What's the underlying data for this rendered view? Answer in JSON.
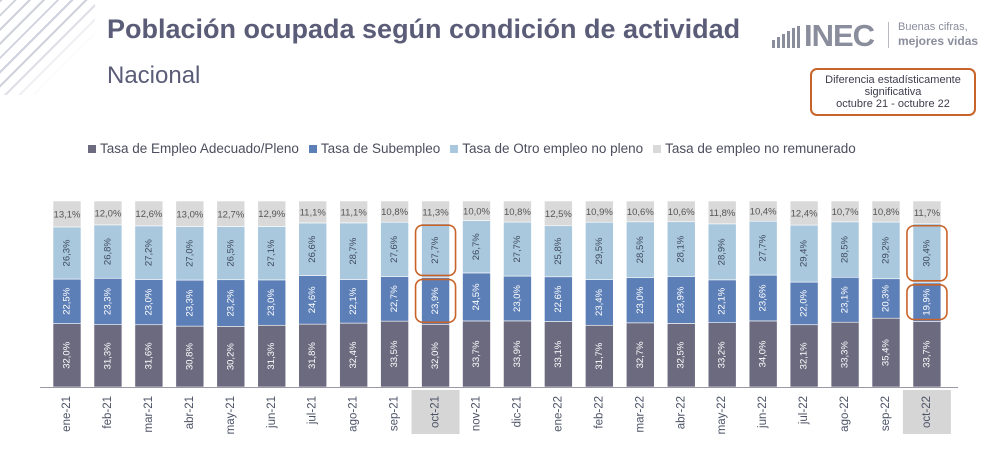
{
  "header": {
    "title": "Población ocupada según condición de actividad",
    "subtitle": "Nacional",
    "logo_text": "INEC",
    "logo_tagline_1": "Buenas cifras,",
    "logo_tagline_2": "mejores vidas"
  },
  "note": {
    "line1": "Diferencia estadísticamente",
    "line2": "significativa",
    "line3": "octubre 21 - octubre 22"
  },
  "colors": {
    "adecuado": "#6b6a7f",
    "subempleo": "#5d7fb7",
    "otro": "#a9c8de",
    "no_remunerado": "#d9d9d9",
    "highlight_border": "#c8642a",
    "highlight_label_bg": "#d6d6d6"
  },
  "chart_data": {
    "type": "bar",
    "stacked": true,
    "percent_stacked": true,
    "categories": [
      "ene-21",
      "feb-21",
      "mar-21",
      "abr-21",
      "may-21",
      "jun-21",
      "jul-21",
      "ago-21",
      "sep-21",
      "oct-21",
      "nov-21",
      "dic-21",
      "ene-22",
      "feb-22",
      "mar-22",
      "abr-22",
      "may-22",
      "jun-22",
      "jul-22",
      "ago-22",
      "sep-22",
      "oct-22"
    ],
    "series": [
      {
        "name": "Tasa de Empleo Adecuado/Pleno",
        "values": [
          32.0,
          31.3,
          31.6,
          30.8,
          30.2,
          31.3,
          31.8,
          32.4,
          33.5,
          32.0,
          33.7,
          33.9,
          33.1,
          31.7,
          32.7,
          32.5,
          33.2,
          34.0,
          32.1,
          33.3,
          35.4,
          33.7
        ],
        "labels": [
          "32,0%",
          "31,3%",
          "31,6%",
          "30,8%",
          "30,2%",
          "31,3%",
          "31,8%",
          "32,4%",
          "33,5%",
          "32,0%",
          "33,7%",
          "33,9%",
          "33,1%",
          "31,7%",
          "32,7%",
          "32,5%",
          "33,2%",
          "34,0%",
          "32,1%",
          "33,3%",
          "35,4%",
          "33,7%"
        ]
      },
      {
        "name": "Tasa de Subempleo",
        "values": [
          22.5,
          23.3,
          23.0,
          23.3,
          23.2,
          23.0,
          24.6,
          22.1,
          22.7,
          23.9,
          24.5,
          23.0,
          22.6,
          23.4,
          23.0,
          23.9,
          22.1,
          23.6,
          22.0,
          23.1,
          20.3,
          19.9
        ],
        "labels": [
          "22,5%",
          "23,3%",
          "23,0%",
          "23,3%",
          "23,2%",
          "23,0%",
          "24,6%",
          "22,1%",
          "22,7%",
          "23,9%",
          "24,5%",
          "23,0%",
          "22,6%",
          "23,4%",
          "23,0%",
          "23,9%",
          "22,1%",
          "23,6%",
          "22,0%",
          "23,1%",
          "20,3%",
          "19,9%"
        ]
      },
      {
        "name": "Tasa de Otro empleo no pleno",
        "values": [
          26.3,
          26.8,
          27.2,
          27.0,
          26.5,
          27.1,
          26.6,
          28.7,
          27.6,
          27.7,
          26.7,
          27.7,
          25.8,
          29.5,
          28.5,
          28.1,
          28.9,
          27.7,
          29.4,
          28.5,
          29.2,
          30.4
        ],
        "labels": [
          "26,3%",
          "26,8%",
          "27,2%",
          "27,0%",
          "26,5%",
          "27,1%",
          "26,6%",
          "28,7%",
          "27,6%",
          "27,7%",
          "26,7%",
          "27,7%",
          "25,8%",
          "29,5%",
          "28,5%",
          "28,1%",
          "28,9%",
          "27,7%",
          "29,4%",
          "28,5%",
          "29,2%",
          "30,4%"
        ]
      },
      {
        "name": "Tasa de empleo no remunerado",
        "values": [
          13.1,
          12.0,
          12.6,
          13.0,
          12.7,
          12.9,
          11.1,
          11.1,
          10.8,
          11.3,
          10.0,
          10.8,
          12.5,
          10.9,
          10.6,
          10.6,
          11.8,
          10.4,
          12.4,
          10.7,
          10.8,
          11.7
        ],
        "labels": [
          "13,1%",
          "12,0%",
          "12,6%",
          "13,0%",
          "12,7%",
          "12,9%",
          "11,1%",
          "11,1%",
          "10,8%",
          "11,3%",
          "10,0%",
          "10,8%",
          "12,5%",
          "10,9%",
          "10,6%",
          "10,6%",
          "11,8%",
          "10,4%",
          "12,4%",
          "10,7%",
          "10,8%",
          "11,7%"
        ]
      }
    ],
    "highlighted_categories": [
      "oct-21",
      "oct-22"
    ],
    "highlighted_series": [
      "Tasa de Subempleo",
      "Tasa de Otro empleo no pleno"
    ],
    "legend_position": "top",
    "grid": false
  }
}
